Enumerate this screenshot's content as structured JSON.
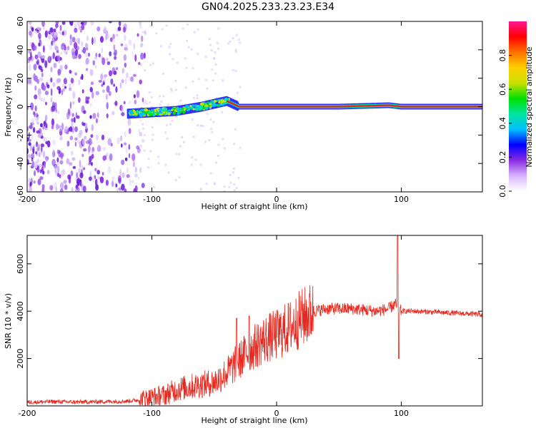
{
  "title": "GN04.2025.233.23.23.E34",
  "colors": {
    "snr_line": "#e8281e",
    "scatter_base": "#7b1fe0"
  },
  "chart_data": [
    {
      "type": "heatmap",
      "xlabel": "Height of straight line (km)",
      "ylabel": "Frequency (Hz)",
      "xlim": [
        -200,
        165
      ],
      "ylim": [
        -60,
        60
      ],
      "xticks": [
        -200,
        -100,
        0,
        100
      ],
      "yticks": [
        60,
        40,
        20,
        0,
        -20,
        -40,
        -60
      ],
      "colorbar": {
        "label": "Normalized spectral amplitude",
        "range": [
          0,
          1
        ],
        "ticks": [
          "0.0",
          "0.2",
          "0.4",
          "0.6",
          "0.8"
        ],
        "colors": [
          "#ffffff",
          "#d8b4ff",
          "#8a2be2",
          "#0000ff",
          "#00bfff",
          "#00e5a0",
          "#00e000",
          "#c8e000",
          "#ffd000",
          "#ff7000",
          "#ff0000",
          "#ff1493"
        ]
      },
      "ridge": {
        "x": [
          -120,
          -100,
          -80,
          -60,
          -45,
          -40,
          -30,
          -20,
          0,
          20,
          50,
          90,
          100,
          165
        ],
        "freq": [
          -5,
          -4,
          -3,
          0,
          3,
          4,
          0,
          0,
          0,
          0,
          0,
          1,
          0,
          0
        ]
      }
    },
    {
      "type": "line",
      "xlabel": "Height of straight line (km)",
      "ylabel": "SNR (10 * v/v)",
      "xlim": [
        -200,
        165
      ],
      "ylim": [
        0,
        7200
      ],
      "xticks": [
        -200,
        -100,
        0,
        100
      ],
      "yticks": [
        6000,
        4000,
        2000
      ],
      "series": [
        {
          "x": [
            -200,
            -180,
            -160,
            -140,
            -120,
            -110,
            -100,
            -90,
            -80,
            -70,
            -60,
            -50,
            -40,
            -30,
            -25,
            -20,
            -10,
            0,
            10,
            20,
            30,
            40,
            50,
            60,
            70,
            80,
            90,
            95,
            98,
            100,
            110,
            130,
            150,
            165
          ],
          "values": [
            150,
            180,
            160,
            180,
            200,
            250,
            350,
            450,
            700,
            800,
            900,
            1000,
            1400,
            1900,
            2200,
            2400,
            2800,
            3000,
            3300,
            3700,
            4000,
            4100,
            4100,
            4100,
            4050,
            4000,
            4100,
            4300,
            4100,
            4000,
            4000,
            3950,
            3900,
            3850
          ]
        }
      ],
      "spikes": [
        {
          "x": -32,
          "value": 3700
        },
        {
          "x": -22,
          "value": 3800
        },
        {
          "x": 97,
          "value": 7200
        },
        {
          "x": 98,
          "value": 2000
        }
      ]
    }
  ]
}
